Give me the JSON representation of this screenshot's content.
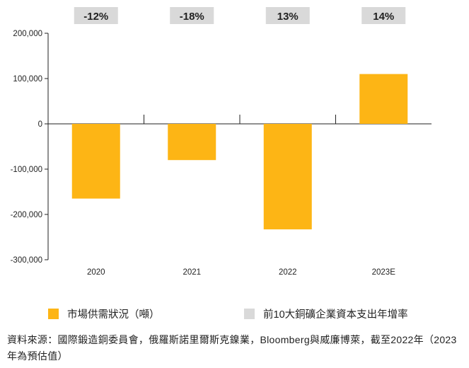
{
  "colors": {
    "bar": "#FDB515",
    "growth_box": "#D9D9D9",
    "axis": "#222222"
  },
  "chart_data": {
    "type": "bar",
    "categories": [
      "2020",
      "2021",
      "2022",
      "2023E"
    ],
    "series": [
      {
        "name": "市場供需狀況（噸）",
        "values": [
          -165000,
          -80000,
          -233000,
          110000
        ]
      },
      {
        "name": "前10大銅礦企業資本支出年增率",
        "values": [
          "-12%",
          "-18%",
          "13%",
          "14%"
        ]
      }
    ],
    "yticks": [
      "200,000",
      "100,000",
      "0",
      "-100,000",
      "-200,000",
      "-300,000"
    ],
    "ylim": [
      -300000,
      200000
    ],
    "grid": false,
    "legend_position": "bottom"
  },
  "legend": {
    "bar_label": "市場供需狀況（噸）",
    "growth_label": "前10大銅礦企業資本支出年增率"
  },
  "source_note": "資料來源：國際鍛造銅委員會，俄羅斯諾里爾斯克鎳業，Bloomberg與威廉博萊，截至2022年（2023年為預估值）"
}
